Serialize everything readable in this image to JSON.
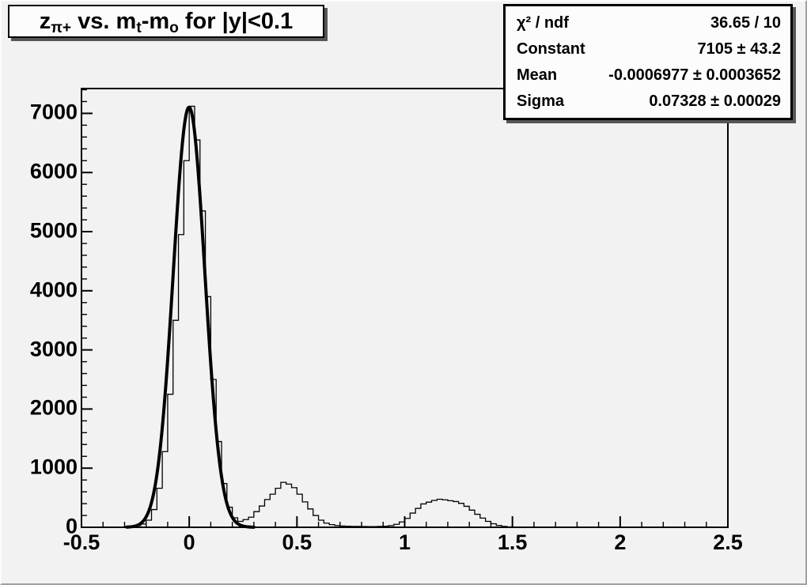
{
  "title_box": {
    "seg_base": "z",
    "seg_sub1": "π+",
    "seg_mid1": " vs. m",
    "seg_sub2": "t",
    "seg_mid2": "-m",
    "seg_sub3": "o",
    "seg_tail": " for |y|<0.1"
  },
  "stats_box": {
    "rows": [
      {
        "label": "χ² / ndf",
        "value": "36.65 / 10"
      },
      {
        "label": "Constant",
        "value": "7105 ± 43.2"
      },
      {
        "label": "Mean",
        "value": "-0.0006977 ± 0.0003652"
      },
      {
        "label": "Sigma",
        "value": "0.07328 ± 0.00029"
      }
    ]
  },
  "chart_data": {
    "type": "bar",
    "subtype": "histogram-steps",
    "title": "z_{π+} vs. m_t-m_o for |y|<0.1",
    "xlabel": "",
    "ylabel": "",
    "xlim": [
      -0.5,
      2.5
    ],
    "ylim": [
      0,
      7420
    ],
    "grid": false,
    "line_color": "#000000",
    "x_major_ticks": [
      -0.5,
      0,
      0.5,
      1,
      1.5,
      2,
      2.5
    ],
    "x_tick_labels": [
      "-0.5",
      "0",
      "0.5",
      "1",
      "1.5",
      "2",
      "2.5"
    ],
    "x_minor_step": 0.1,
    "y_major_ticks": [
      0,
      1000,
      2000,
      3000,
      4000,
      5000,
      6000,
      7000
    ],
    "y_tick_labels": [
      "0",
      "1000",
      "2000",
      "3000",
      "4000",
      "5000",
      "6000",
      "7000"
    ],
    "y_minor_step": 200,
    "bins": {
      "x_start": -0.5,
      "bin_width": 0.025,
      "counts": [
        0,
        0,
        0,
        0,
        0,
        0,
        0,
        0,
        8,
        14,
        28,
        55,
        120,
        300,
        660,
        1280,
        2250,
        3500,
        4950,
        6200,
        7120,
        6550,
        5350,
        3900,
        2500,
        1450,
        740,
        340,
        160,
        100,
        130,
        170,
        265,
        360,
        470,
        560,
        660,
        760,
        730,
        670,
        560,
        430,
        310,
        200,
        120,
        70,
        45,
        30,
        22,
        18,
        15,
        14,
        13,
        12,
        12,
        14,
        18,
        28,
        50,
        90,
        150,
        240,
        320,
        395,
        425,
        455,
        475,
        465,
        450,
        435,
        405,
        355,
        290,
        220,
        155,
        100,
        60,
        32,
        15,
        6,
        0,
        0,
        0,
        0,
        0,
        0,
        0,
        0,
        0,
        0,
        0,
        0,
        0,
        0,
        0,
        0,
        0,
        0,
        0,
        0,
        0,
        0,
        0,
        0,
        0,
        0,
        0,
        0,
        0,
        0,
        0,
        0,
        0,
        0,
        0,
        0,
        0,
        0,
        0,
        0
      ]
    },
    "fit": {
      "type": "gaussian",
      "constant": 7105,
      "mean": -0.0006977,
      "sigma": 0.07328,
      "range": [
        -0.29,
        0.3
      ],
      "chi2": 36.65,
      "ndf": 10
    }
  }
}
